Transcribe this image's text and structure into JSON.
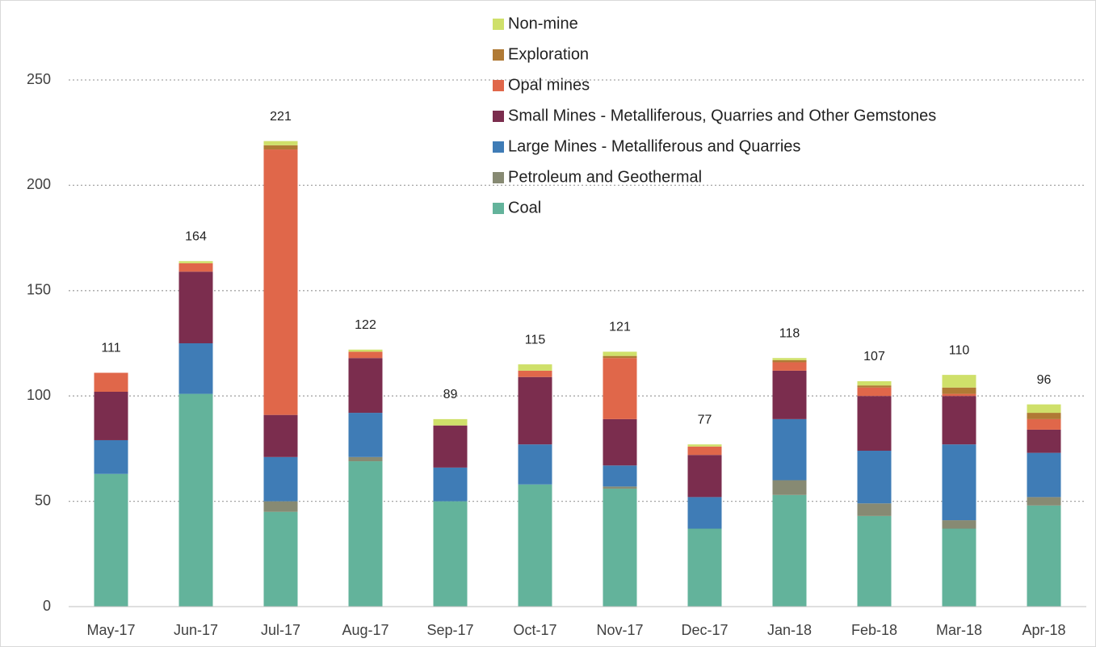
{
  "chart_data": {
    "type": "stacked_bar",
    "categories": [
      "May-17",
      "Jun-17",
      "Jul-17",
      "Aug-17",
      "Sep-17",
      "Oct-17",
      "Nov-17",
      "Dec-17",
      "Jan-18",
      "Feb-18",
      "Mar-18",
      "Apr-18"
    ],
    "series": [
      {
        "name": "Coal",
        "color": "#63b39b",
        "values": [
          63,
          101,
          45,
          69,
          50,
          58,
          56,
          37,
          53,
          43,
          37,
          48
        ]
      },
      {
        "name": "Petroleum and Geothermal",
        "color": "#878a73",
        "values": [
          0,
          0,
          5,
          2,
          0,
          0,
          1,
          0,
          7,
          6,
          4,
          4
        ]
      },
      {
        "name": "Large Mines - Metalliferous and Quarries",
        "color": "#3f7cb6",
        "values": [
          16,
          24,
          21,
          21,
          16,
          19,
          10,
          15,
          29,
          25,
          36,
          21
        ]
      },
      {
        "name": "Small Mines - Metalliferous, Quarries and Other Gemstones",
        "color": "#7b2d4e",
        "values": [
          23,
          34,
          20,
          26,
          20,
          32,
          22,
          20,
          23,
          26,
          23,
          11
        ]
      },
      {
        "name": "Opal mines",
        "color": "#e0674a",
        "values": [
          9,
          4,
          126,
          3,
          0,
          3,
          29,
          4,
          4,
          4,
          1,
          5
        ]
      },
      {
        "name": "Exploration",
        "color": "#b07a35",
        "values": [
          0,
          0,
          2,
          0,
          0,
          0,
          1,
          0,
          1,
          1,
          3,
          3
        ]
      },
      {
        "name": "Non-mine",
        "color": "#cfe06a",
        "values": [
          0,
          1,
          2,
          1,
          3,
          3,
          2,
          1,
          1,
          2,
          6,
          4
        ]
      }
    ],
    "totals": [
      111,
      164,
      221,
      122,
      89,
      115,
      121,
      77,
      118,
      107,
      110,
      96
    ],
    "ylim": [
      0,
      250
    ],
    "yticks": [
      0,
      50,
      100,
      150,
      200,
      250
    ],
    "grid": true
  }
}
